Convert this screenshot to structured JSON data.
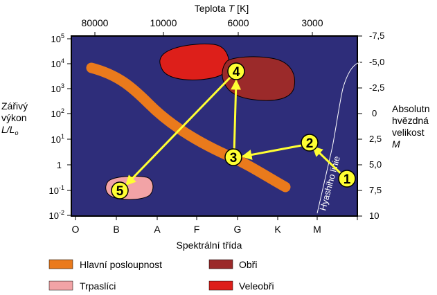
{
  "diagram": {
    "top_axis": {
      "title_prefix": "Teplota ",
      "title_var": "T",
      "title_suffix": " [K]",
      "ticks": [
        "80000",
        "10000",
        "6000",
        "3000"
      ]
    },
    "left_axis": {
      "title_lines": [
        "Zářivý",
        "výkon"
      ],
      "title_symbol": "L/L",
      "title_symbol_sub": "o",
      "ticks": [
        {
          "base": "10",
          "exp": "5"
        },
        {
          "base": "10",
          "exp": "4"
        },
        {
          "base": "10",
          "exp": "3"
        },
        {
          "base": "10",
          "exp": "2"
        },
        {
          "base": "10",
          "exp": "1"
        },
        {
          "base": "1",
          "exp": ""
        },
        {
          "base": "10",
          "exp": "-1"
        },
        {
          "base": "10",
          "exp": "-2"
        }
      ]
    },
    "right_axis": {
      "title_lines": [
        "Absolutn",
        "hvězdná",
        "velikost"
      ],
      "title_symbol": "M",
      "ticks": [
        "-7,5",
        "-5,0",
        "-2,5",
        "0",
        "2,5",
        "5,0",
        "7,5",
        "10"
      ]
    },
    "bottom_axis": {
      "title": "Spektrální třída",
      "ticks": [
        "O",
        "B",
        "A",
        "F",
        "G",
        "K",
        "M"
      ]
    },
    "hayashi_label": "Hyashiho linie",
    "markers": [
      "1",
      "2",
      "3",
      "4",
      "5"
    ],
    "colors": {
      "plot_bg": "#2e2d7a",
      "main_sequence": "#ea7a1c",
      "dwarfs": "#f2a3a6",
      "giants": "#9b2a2a",
      "supergiants": "#dd1f1a",
      "arrows": "#ffff33"
    },
    "legend": [
      {
        "label": "Hlavní posloupnost",
        "color": "#ea7a1c"
      },
      {
        "label": "Obři",
        "color": "#9b2a2a"
      },
      {
        "label": "Trpaslíci",
        "color": "#f2a3a6"
      },
      {
        "label": "Veleobři",
        "color": "#dd1f1a"
      }
    ]
  }
}
